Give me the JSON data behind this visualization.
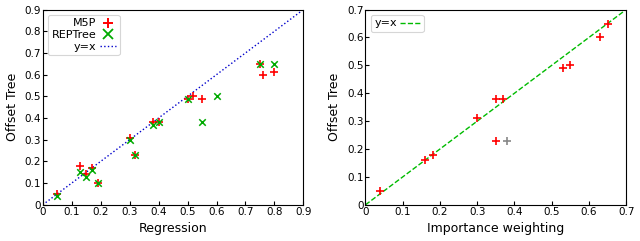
{
  "left": {
    "m5p_x": [
      0.05,
      0.13,
      0.15,
      0.17,
      0.19,
      0.3,
      0.32,
      0.38,
      0.4,
      0.5,
      0.52,
      0.55,
      0.75,
      0.76,
      0.8
    ],
    "m5p_y": [
      0.05,
      0.18,
      0.14,
      0.17,
      0.1,
      0.31,
      0.23,
      0.38,
      0.38,
      0.49,
      0.5,
      0.49,
      0.65,
      0.6,
      0.61
    ],
    "rept_x": [
      0.05,
      0.13,
      0.15,
      0.17,
      0.19,
      0.3,
      0.32,
      0.38,
      0.4,
      0.5,
      0.55,
      0.6,
      0.75,
      0.8
    ],
    "rept_y": [
      0.04,
      0.15,
      0.13,
      0.16,
      0.1,
      0.3,
      0.23,
      0.37,
      0.38,
      0.49,
      0.38,
      0.5,
      0.65,
      0.65
    ],
    "xlim": [
      0.0,
      0.9
    ],
    "ylim": [
      0.0,
      0.9
    ],
    "xticks": [
      0.0,
      0.1,
      0.2,
      0.3,
      0.4,
      0.5,
      0.6,
      0.7,
      0.8,
      0.9
    ],
    "yticks": [
      0.0,
      0.1,
      0.2,
      0.3,
      0.4,
      0.5,
      0.6,
      0.7,
      0.8,
      0.9
    ],
    "xtick_labels": [
      "0",
      "0.1",
      "0.2",
      "0.3",
      "0.4",
      "0.5",
      "0.6",
      "0.7",
      "0.8",
      "0.9"
    ],
    "ytick_labels": [
      "0",
      "0.1",
      "0.2",
      "0.3",
      "0.4",
      "0.5",
      "0.6",
      "0.7",
      "0.8",
      "0.9"
    ],
    "xlabel": "Regression",
    "ylabel": "Offset Tree"
  },
  "right": {
    "m5p_x": [
      0.04,
      0.16,
      0.18,
      0.3,
      0.35,
      0.35,
      0.37,
      0.53,
      0.55,
      0.63,
      0.65
    ],
    "m5p_y": [
      0.05,
      0.16,
      0.18,
      0.31,
      0.23,
      0.38,
      0.38,
      0.49,
      0.5,
      0.6,
      0.65
    ],
    "grey_x": [
      0.38
    ],
    "grey_y": [
      0.23
    ],
    "xlim": [
      0.0,
      0.7
    ],
    "ylim": [
      0.0,
      0.7
    ],
    "xticks": [
      0.0,
      0.1,
      0.2,
      0.3,
      0.4,
      0.5,
      0.6,
      0.7
    ],
    "yticks": [
      0.0,
      0.1,
      0.2,
      0.3,
      0.4,
      0.5,
      0.6,
      0.7
    ],
    "xtick_labels": [
      "0",
      "0.1",
      "0.2",
      "0.3",
      "0.4",
      "0.5",
      "0.6",
      "0.7"
    ],
    "ytick_labels": [
      "0",
      "0.1",
      "0.2",
      "0.3",
      "0.4",
      "0.5",
      "0.6",
      "0.7"
    ],
    "xlabel": "Importance weighting",
    "ylabel": "Offset Tree"
  },
  "m5p_color": "#ff0000",
  "rept_color": "#00aa00",
  "diag_color_left": "#0000cc",
  "diag_color_right": "#00bb00",
  "grey_color": "#888888",
  "tick_labelsize": 7.5,
  "label_fontsize": 9,
  "legend_fontsize": 8
}
